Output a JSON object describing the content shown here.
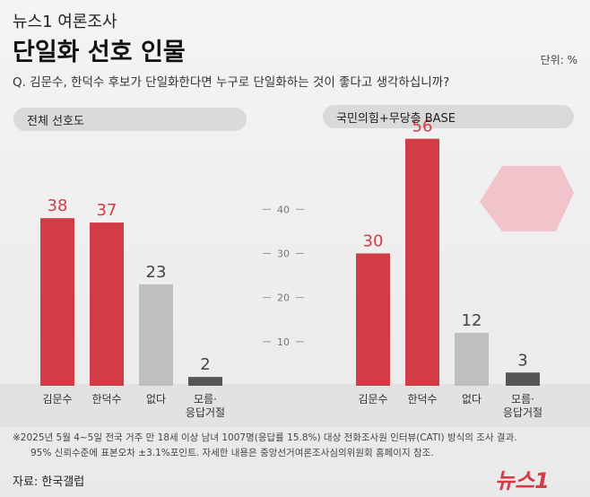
{
  "header": {
    "kicker": "뉴스1 여론조사",
    "title": "단일화 선호 인물",
    "unit": "단위: %",
    "question": "Q. 김문수, 한덕수 후보가 단일화한다면 누구로 단일화하는 것이 좋다고 생각하십니까?"
  },
  "chart_data": [
    {
      "type": "bar",
      "title": "전체 선호도",
      "categories": [
        "김문수",
        "한덕수",
        "없다",
        "모름·\n응답거절"
      ],
      "values": [
        38,
        37,
        23,
        2
      ],
      "colors": [
        "#d23c44",
        "#d23c44",
        "#bfbfbf",
        "#555555"
      ],
      "ylim": [
        0,
        60
      ],
      "yticks": [
        10,
        20,
        30,
        40
      ]
    },
    {
      "type": "bar",
      "title": "국민의힘+무당층 BASE",
      "categories": [
        "김문수",
        "한덕수",
        "없다",
        "모름·\n응답거절"
      ],
      "values": [
        30,
        56,
        12,
        3
      ],
      "colors": [
        "#d23c44",
        "#d23c44",
        "#bfbfbf",
        "#555555"
      ],
      "ylim": [
        0,
        60
      ]
    }
  ],
  "footer": {
    "notes": [
      "※2025년 5월 4~5일 전국 거주 만 18세 이상 남녀 1007명(응답률 15.8%) 대상 전화조사원 인터뷰(CATI) 방식의 조사 결과.",
      "95% 신뢰수준에 표본오차 ±3.1%포인트. 자세한 내용은 중앙선거여론조사심의위원회 홈페이지 참조."
    ],
    "source": "자료: 한국갤럽",
    "logo": "뉴스1"
  }
}
